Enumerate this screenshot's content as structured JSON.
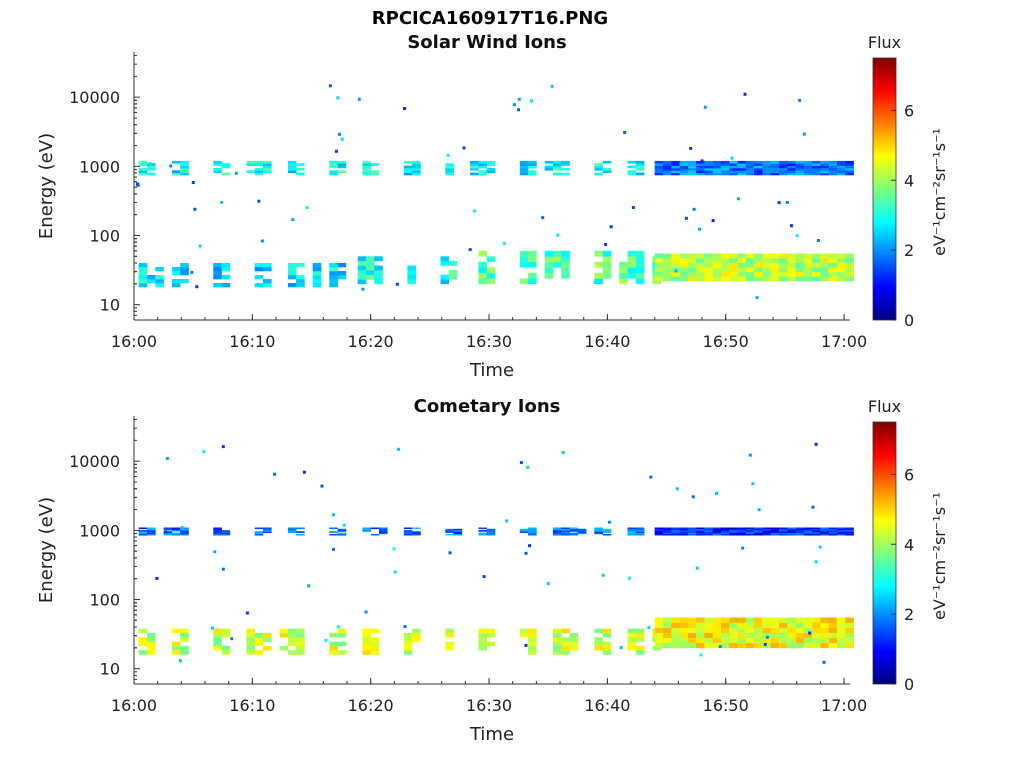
{
  "page_title": "RPCICA160917T16.PNG",
  "colormap": [
    "#00007f",
    "#0000ff",
    "#007fff",
    "#00ffff",
    "#7fff7f",
    "#ffff00",
    "#ff7f00",
    "#ff0000",
    "#7f0000"
  ],
  "chart_data": [
    {
      "type": "heatmap",
      "title": "Solar Wind Ions",
      "xlabel": "Time",
      "ylabel": "Energy (eV)",
      "x_ticks": [
        "16:00",
        "16:10",
        "16:20",
        "16:30",
        "16:40",
        "16:50",
        "17:00"
      ],
      "x_range_minutes": [
        0,
        60.5
      ],
      "y_scale": "log",
      "y_range": [
        6,
        45000
      ],
      "y_ticks": [
        "10",
        "100",
        "1000",
        "10000"
      ],
      "colorbar": {
        "label": "Flux",
        "units": "eV⁻¹cm⁻²sr⁻¹s⁻¹",
        "ticks": [
          "0",
          "2",
          "4",
          "6"
        ],
        "range": [
          0,
          7.5
        ]
      },
      "bands": [
        {
          "t_start": 0.4,
          "t_end": 17.5,
          "e_low": 18,
          "e_high": 40,
          "flux": 2.6
        },
        {
          "t_start": 17.5,
          "t_end": 27,
          "e_low": 20,
          "e_high": 50,
          "flux": 2.9
        },
        {
          "t_start": 27,
          "t_end": 44,
          "e_low": 20,
          "e_high": 60,
          "flux": 3.4
        },
        {
          "t_start": 44,
          "t_end": 60.5,
          "e_low": 22,
          "e_high": 55,
          "flux": 4.2
        },
        {
          "t_start": 0.4,
          "t_end": 44,
          "e_low": 750,
          "e_high": 1200,
          "flux": 2.8
        },
        {
          "t_start": 44,
          "t_end": 60.5,
          "e_low": 750,
          "e_high": 1200,
          "flux": 1.8
        }
      ]
    },
    {
      "type": "heatmap",
      "title": "Cometary Ions",
      "xlabel": "Time",
      "ylabel": "Energy (eV)",
      "x_ticks": [
        "16:00",
        "16:10",
        "16:20",
        "16:30",
        "16:40",
        "16:50",
        "17:00"
      ],
      "x_range_minutes": [
        0,
        60.5
      ],
      "y_scale": "log",
      "y_range": [
        6,
        45000
      ],
      "y_ticks": [
        "10",
        "100",
        "1000",
        "10000"
      ],
      "colorbar": {
        "label": "Flux",
        "units": "eV⁻¹cm⁻²sr⁻¹s⁻¹",
        "ticks": [
          "0",
          "2",
          "4",
          "6"
        ],
        "range": [
          0,
          7.5
        ]
      },
      "bands": [
        {
          "t_start": 0.4,
          "t_end": 44,
          "e_low": 16,
          "e_high": 38,
          "flux": 4.3
        },
        {
          "t_start": 44,
          "t_end": 60.5,
          "e_low": 20,
          "e_high": 55,
          "flux": 4.6
        },
        {
          "t_start": 0.4,
          "t_end": 44,
          "e_low": 850,
          "e_high": 1100,
          "flux": 1.8
        },
        {
          "t_start": 44,
          "t_end": 60.5,
          "e_low": 850,
          "e_high": 1100,
          "flux": 1.2
        }
      ]
    }
  ]
}
